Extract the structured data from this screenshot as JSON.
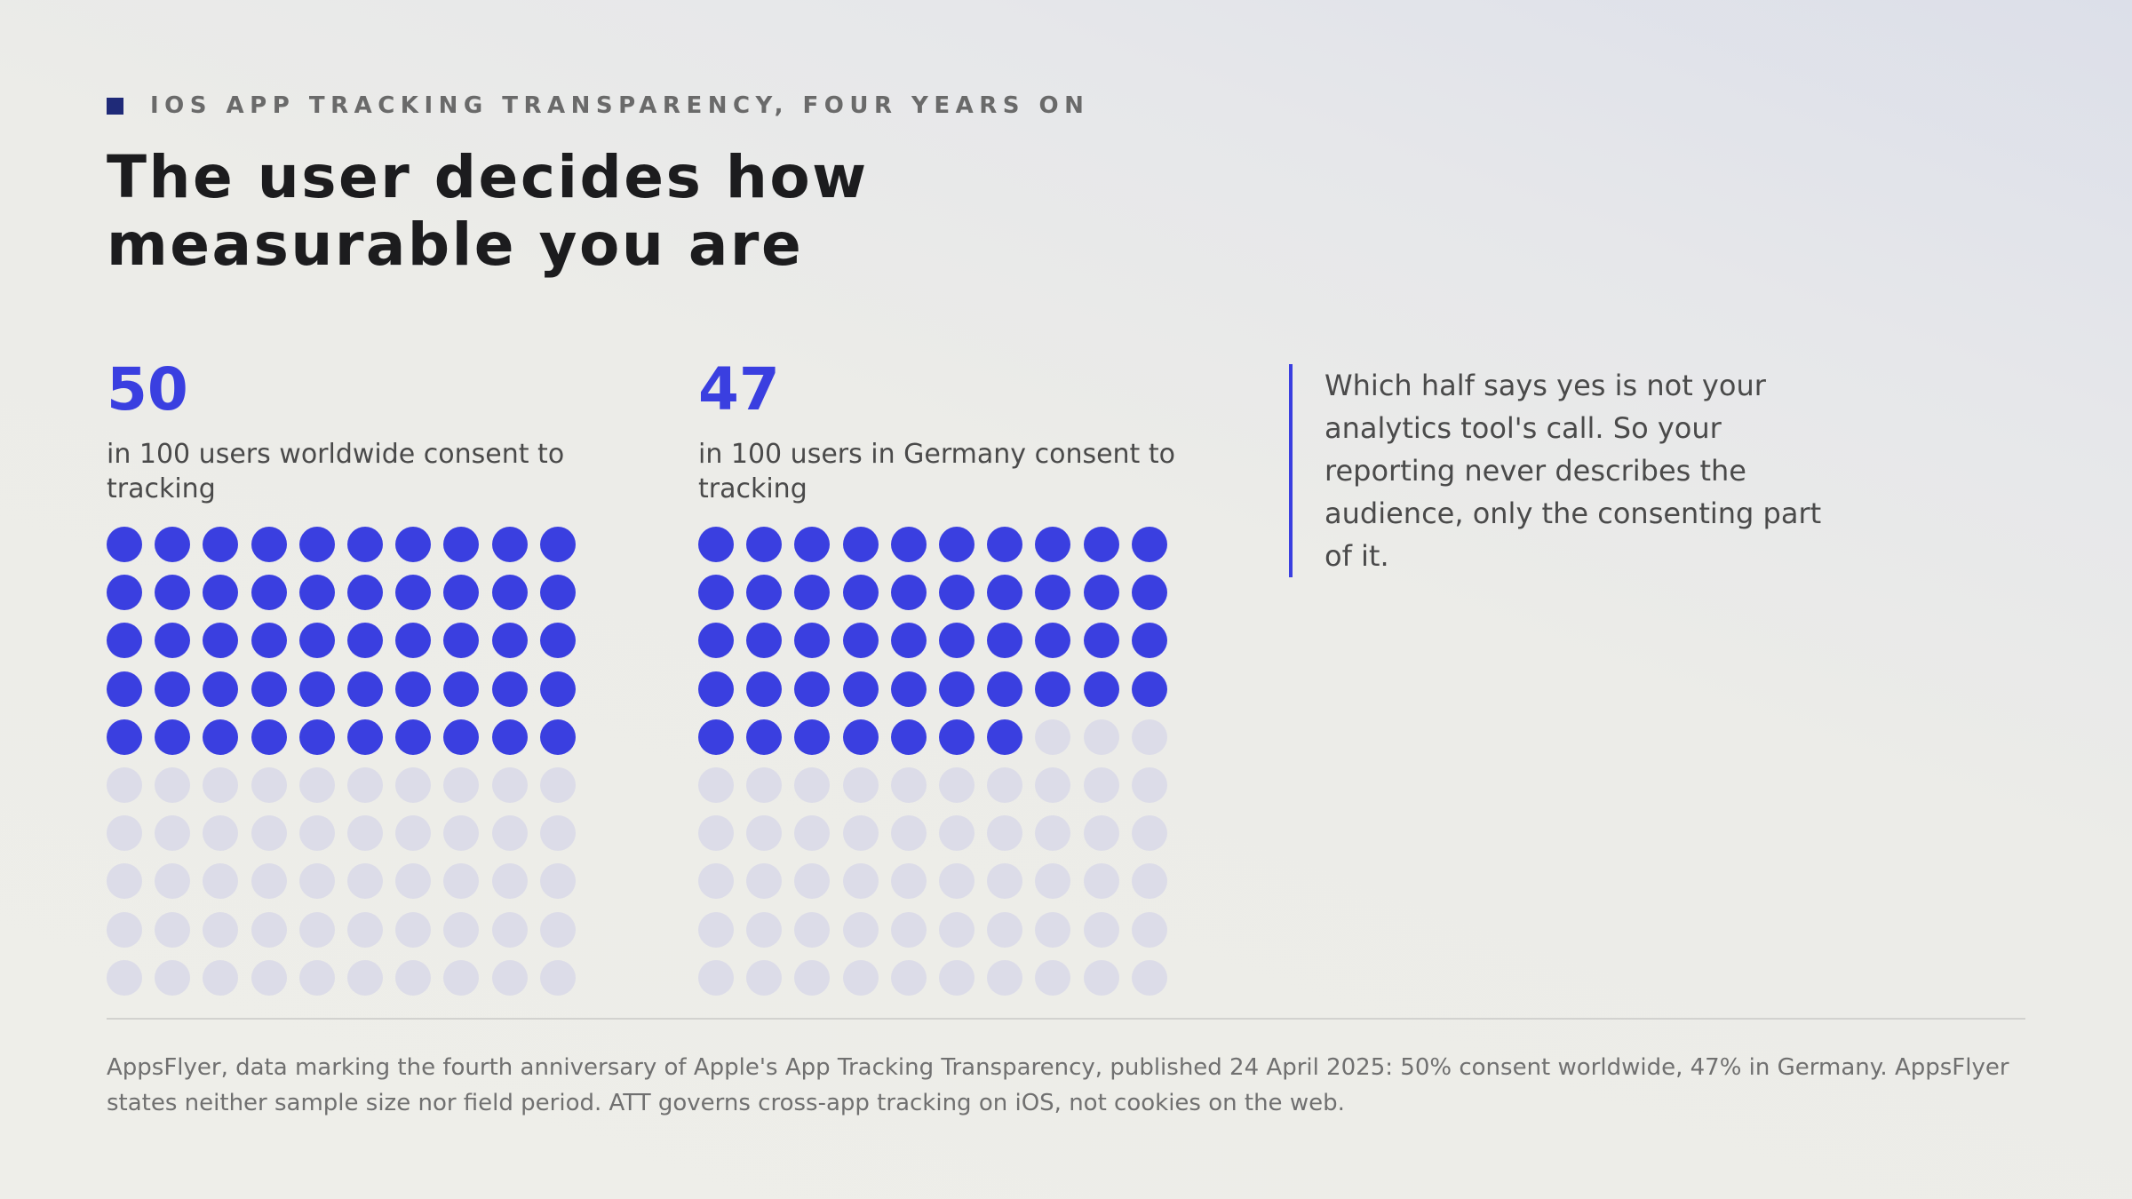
{
  "eyebrow": "IOS APP TRACKING TRANSPARENCY, FOUR YEARS ON",
  "title_line1": "The user decides how",
  "title_line2": "measurable you are",
  "colors": {
    "accent": "#3a3fe0",
    "inactive_dot": "#dcdce8",
    "eyebrow_square": "#1f2a78"
  },
  "chart_data": [
    {
      "type": "waffle",
      "value": 50,
      "total": 100,
      "rows": 10,
      "cols": 10,
      "value_label": "50",
      "caption": "in 100 users worldwide consent to tracking"
    },
    {
      "type": "waffle",
      "value": 47,
      "total": 100,
      "rows": 10,
      "cols": 10,
      "value_label": "47",
      "caption": "in 100 users in Germany consent to tracking"
    }
  ],
  "quote": "Which half says yes is not your analytics tool's call. So your reporting never describes the audience, only the consenting part of it.",
  "source": "AppsFlyer, data marking the fourth anniversary of Apple's App Tracking Transparency, published 24 April 2025: 50% consent worldwide, 47% in Germany. AppsFlyer states neither sample size nor field period. ATT governs cross-app tracking on iOS, not cookies on the web."
}
